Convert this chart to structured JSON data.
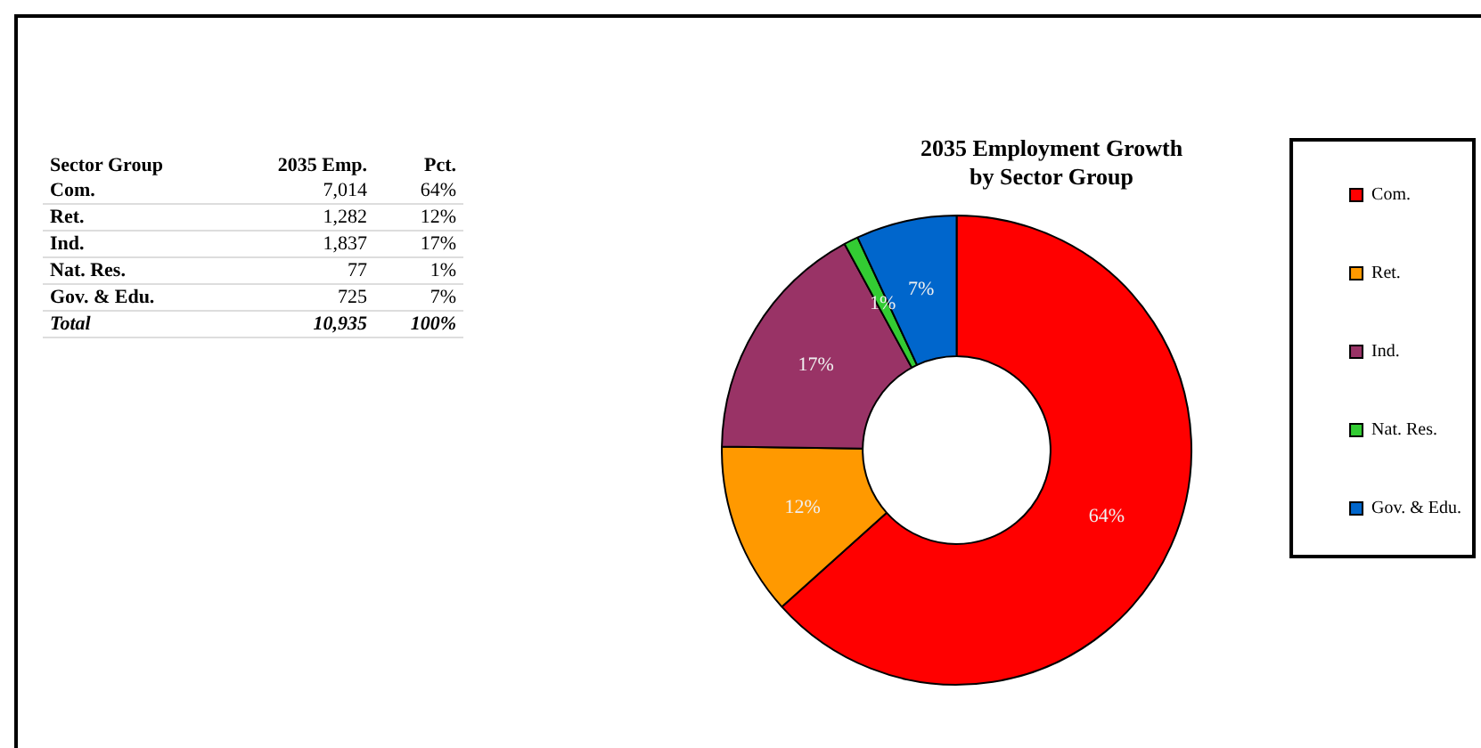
{
  "chart_data": {
    "type": "donut",
    "title": "2035 Employment Growth\nby Sector Group",
    "categories": [
      "Com.",
      "Ret.",
      "Ind.",
      "Nat. Res.",
      "Gov. & Edu."
    ],
    "values": [
      64,
      12,
      17,
      1,
      7
    ],
    "value_labels": [
      "64%",
      "12%",
      "17%",
      "1%",
      "7%"
    ],
    "colors": [
      "#ff0000",
      "#ff9900",
      "#993366",
      "#33cc33",
      "#0066cc"
    ],
    "legend": "right",
    "annotations": [
      "Sector Group",
      "2035 Emp.",
      "Pct.",
      "7,014",
      "1,282",
      "1,837",
      "77",
      "725",
      "Total",
      "10,935",
      "100%"
    ]
  }
}
